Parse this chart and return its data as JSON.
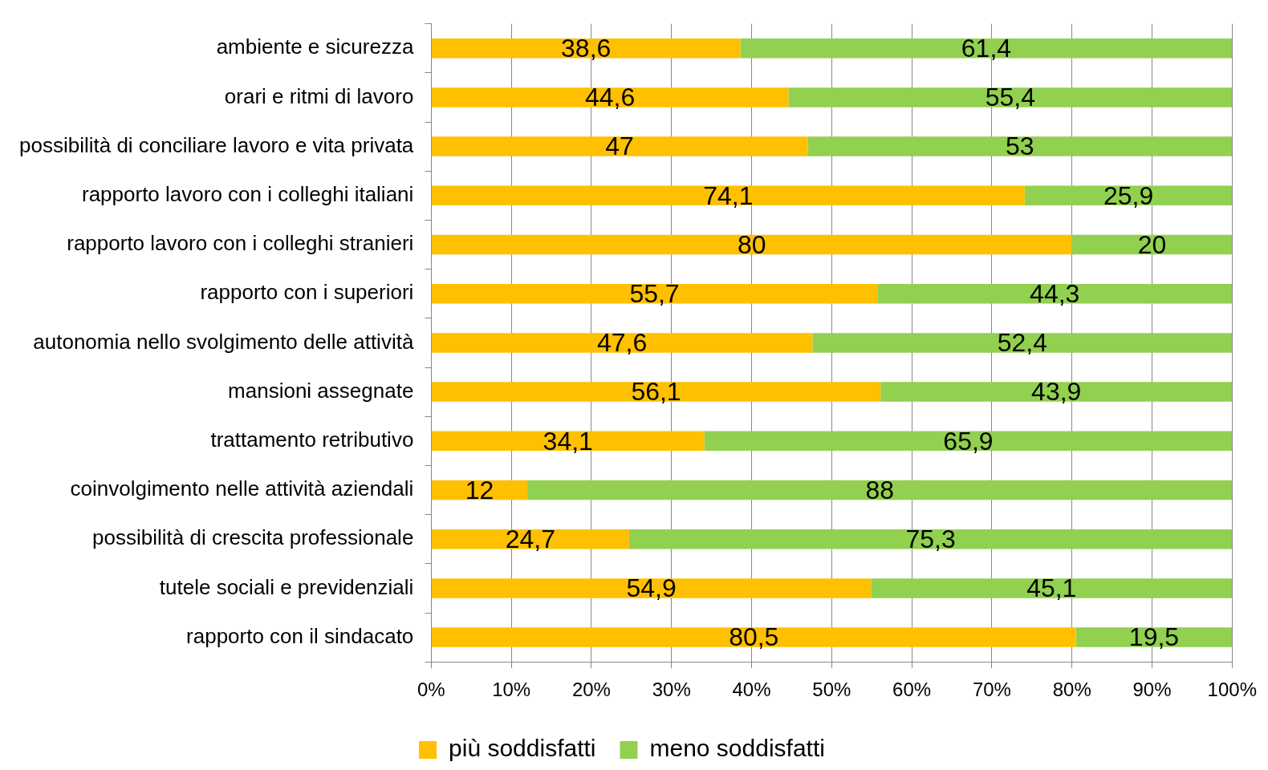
{
  "chart_data": {
    "type": "bar",
    "orientation": "horizontal",
    "stacked": true,
    "categories": [
      "ambiente e sicurezza",
      "orari e ritmi di lavoro",
      "possibilità di conciliare lavoro e vita privata",
      "rapporto lavoro con i colleghi italiani",
      "rapporto lavoro con i colleghi stranieri",
      "rapporto con i superiori",
      "autonomia nello svolgimento delle attività",
      "mansioni assegnate",
      "trattamento retributivo",
      "coinvolgimento nelle attività aziendali",
      "possibilità di crescita professionale",
      "tutele sociali e previdenziali",
      "rapporto con il sindacato"
    ],
    "series": [
      {
        "name": "più soddisfatti",
        "color": "#ffc000",
        "values": [
          38.6,
          44.6,
          47,
          74.1,
          80,
          55.7,
          47.6,
          56.1,
          34.1,
          12,
          24.7,
          54.9,
          80.5
        ],
        "value_labels": [
          "38,6",
          "44,6",
          "47",
          "74,1",
          "80",
          "55,7",
          "47,6",
          "56,1",
          "34,1",
          "12",
          "24,7",
          "54,9",
          "80,5"
        ]
      },
      {
        "name": "meno soddisfatti",
        "color": "#92d050",
        "values": [
          61.4,
          55.4,
          53,
          25.9,
          20,
          44.3,
          52.4,
          43.9,
          65.9,
          88,
          75.3,
          45.1,
          19.5
        ],
        "value_labels": [
          "61,4",
          "55,4",
          "53",
          "25,9",
          "20",
          "44,3",
          "52,4",
          "43,9",
          "65,9",
          "88",
          "75,3",
          "45,1",
          "19,5"
        ]
      }
    ],
    "xlim": [
      0,
      100
    ],
    "xticks": [
      {
        "value": 0,
        "label": "0%"
      },
      {
        "value": 10,
        "label": "10%"
      },
      {
        "value": 20,
        "label": "20%"
      },
      {
        "value": 30,
        "label": "30%"
      },
      {
        "value": 40,
        "label": "40%"
      },
      {
        "value": 50,
        "label": "50%"
      },
      {
        "value": 60,
        "label": "60%"
      },
      {
        "value": 70,
        "label": "70%"
      },
      {
        "value": 80,
        "label": "80%"
      },
      {
        "value": 90,
        "label": "90%"
      },
      {
        "value": 100,
        "label": "100%"
      }
    ],
    "grid": "x",
    "legend": "bottom"
  }
}
